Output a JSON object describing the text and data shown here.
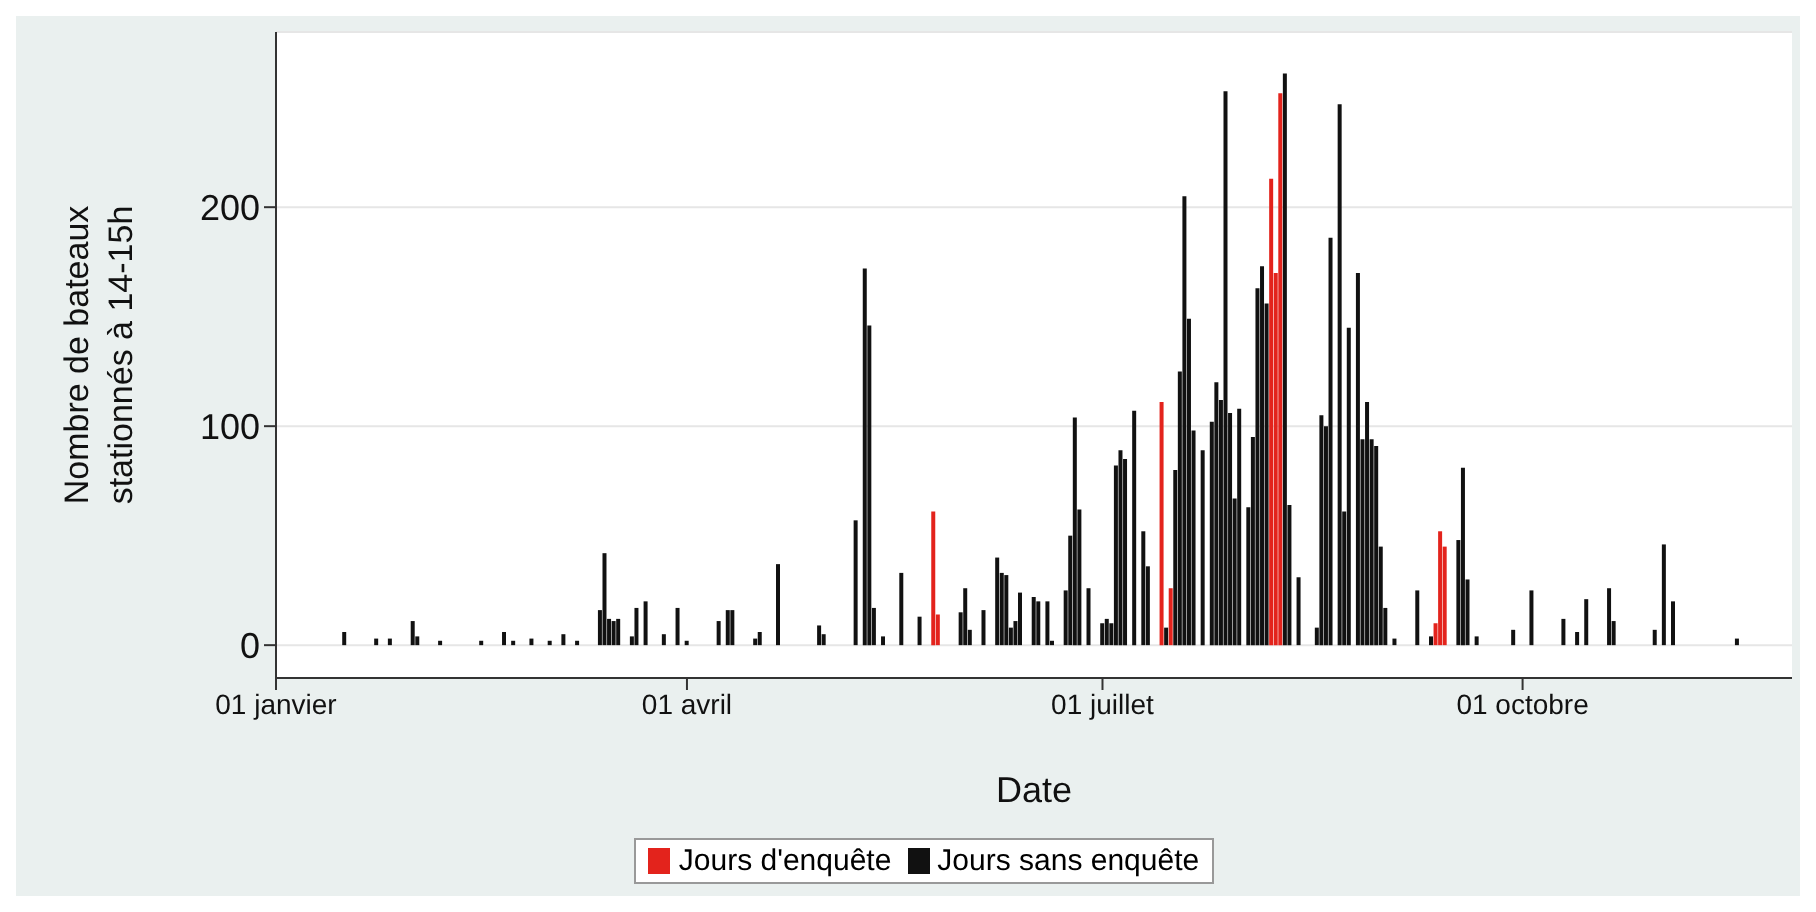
{
  "chart_data": {
    "type": "bar",
    "xlabel": "Date",
    "ylabel": "Nombre de bateaux stationnés à 14-15h",
    "xlim": [
      "--01-01",
      "--11-29"
    ],
    "xticks": [
      {
        "value": "--01-01",
        "label": "01 janvier"
      },
      {
        "value": "--04-01",
        "label": "01 avril"
      },
      {
        "value": "--07-01",
        "label": "01 juillet"
      },
      {
        "value": "--10-01",
        "label": "01 octobre"
      }
    ],
    "ylim": [
      -15,
      280
    ],
    "yticks": [
      0,
      100,
      200
    ],
    "grid": "y",
    "legend": "bottom",
    "series": [
      {
        "name": "Jours d'enquête",
        "color": "#e3231c",
        "x": [
          "--05-25",
          "--05-26",
          "--07-14",
          "--07-16",
          "--08-07",
          "--08-08",
          "--08-09",
          "--09-12",
          "--09-13",
          "--09-14"
        ],
        "values": [
          61,
          14,
          111,
          26,
          213,
          170,
          252,
          10,
          52,
          45
        ]
      },
      {
        "name": "Jours sans enquête",
        "color": "#111111",
        "x": [
          "--01-16",
          "--01-23",
          "--01-26",
          "--01-31",
          "--02-01",
          "--02-06",
          "--02-15",
          "--02-20",
          "--02-22",
          "--02-26",
          "--03-02",
          "--03-05",
          "--03-08",
          "--03-13",
          "--03-14",
          "--03-15",
          "--03-16",
          "--03-17",
          "--03-20",
          "--03-21",
          "--03-23",
          "--03-27",
          "--03-30",
          "--04-01",
          "--04-08",
          "--04-10",
          "--04-11",
          "--04-16",
          "--04-17",
          "--04-21",
          "--04-30",
          "--05-01",
          "--05-08",
          "--05-10",
          "--05-11",
          "--05-12",
          "--05-14",
          "--05-18",
          "--05-22",
          "--05-31",
          "--06-01",
          "--06-02",
          "--06-05",
          "--06-08",
          "--06-09",
          "--06-10",
          "--06-11",
          "--06-12",
          "--06-13",
          "--06-16",
          "--06-17",
          "--06-19",
          "--06-20",
          "--06-23",
          "--06-24",
          "--06-25",
          "--06-26",
          "--06-28",
          "--07-01",
          "--07-02",
          "--07-03",
          "--07-04",
          "--07-05",
          "--07-06",
          "--07-08",
          "--07-10",
          "--07-11",
          "--07-15",
          "--07-17",
          "--07-18",
          "--07-19",
          "--07-20",
          "--07-21",
          "--07-23",
          "--07-25",
          "--07-26",
          "--07-27",
          "--07-28",
          "--07-29",
          "--07-30",
          "--07-31",
          "--08-02",
          "--08-03",
          "--08-04",
          "--08-05",
          "--08-06",
          "--08-10",
          "--08-11",
          "--08-13",
          "--08-17",
          "--08-18",
          "--08-19",
          "--08-20",
          "--08-22",
          "--08-23",
          "--08-24",
          "--08-26",
          "--08-27",
          "--08-28",
          "--08-29",
          "--08-30",
          "--08-31",
          "--09-01",
          "--09-03",
          "--09-08",
          "--09-11",
          "--09-17",
          "--09-18",
          "--09-19",
          "--09-21",
          "--09-29",
          "--10-03",
          "--10-10",
          "--10-13",
          "--10-15",
          "--10-20",
          "--10-21",
          "--10-30",
          "--11-01",
          "--11-03",
          "--11-17"
        ],
        "values": [
          6,
          3,
          3,
          11,
          4,
          2,
          2,
          6,
          2,
          3,
          2,
          5,
          2,
          16,
          42,
          12,
          11,
          12,
          4,
          17,
          20,
          5,
          17,
          2,
          11,
          16,
          16,
          3,
          6,
          37,
          9,
          5,
          57,
          172,
          146,
          17,
          4,
          33,
          13,
          15,
          26,
          7,
          16,
          40,
          33,
          32,
          8,
          11,
          24,
          22,
          20,
          20,
          2,
          25,
          50,
          104,
          62,
          26,
          10,
          12,
          10,
          82,
          89,
          85,
          107,
          52,
          36,
          8,
          80,
          125,
          205,
          149,
          98,
          89,
          102,
          120,
          112,
          253,
          106,
          67,
          108,
          63,
          95,
          163,
          173,
          156,
          261,
          64,
          31,
          8,
          105,
          100,
          186,
          247,
          61,
          145,
          170,
          94,
          111,
          94,
          91,
          45,
          17,
          3,
          25,
          4,
          48,
          81,
          30,
          4,
          7,
          25,
          12,
          6,
          21,
          26,
          11,
          7,
          46,
          20,
          3
        ]
      }
    ]
  }
}
